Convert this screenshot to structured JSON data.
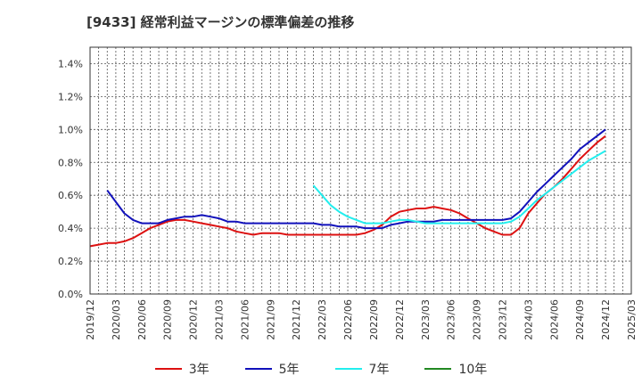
{
  "title": "[9433]  経常利益マージンの標準偏差の推移",
  "chart_data": {
    "type": "line",
    "title": "[9433]  経常利益マージンの標準偏差の推移",
    "xlabel": "",
    "ylabel": "",
    "ylim": [
      0,
      1.5
    ],
    "y_ticks": [
      "0.0%",
      "0.2%",
      "0.4%",
      "0.6%",
      "0.8%",
      "1.0%",
      "1.2%",
      "1.4%"
    ],
    "y_tick_values": [
      0,
      0.2,
      0.4,
      0.6,
      0.8,
      1.0,
      1.2,
      1.4
    ],
    "x_ticks": [
      "2019/12",
      "2020/03",
      "2020/06",
      "2020/09",
      "2020/12",
      "2021/03",
      "2021/06",
      "2021/09",
      "2021/12",
      "2022/03",
      "2022/06",
      "2022/09",
      "2022/12",
      "2023/03",
      "2023/06",
      "2023/09",
      "2023/12",
      "2024/03",
      "2024/06",
      "2024/09",
      "2024/12",
      "2025/03"
    ],
    "grid": true,
    "legend_position": "bottom",
    "series": [
      {
        "name": "3年",
        "color": "#dd1111",
        "points": [
          [
            "2019/12",
            0.29
          ],
          [
            "2020/01",
            0.3
          ],
          [
            "2020/02",
            0.31
          ],
          [
            "2020/03",
            0.31
          ],
          [
            "2020/04",
            0.32
          ],
          [
            "2020/05",
            0.34
          ],
          [
            "2020/06",
            0.37
          ],
          [
            "2020/07",
            0.4
          ],
          [
            "2020/08",
            0.42
          ],
          [
            "2020/09",
            0.44
          ],
          [
            "2020/10",
            0.45
          ],
          [
            "2020/11",
            0.45
          ],
          [
            "2020/12",
            0.44
          ],
          [
            "2021/01",
            0.43
          ],
          [
            "2021/02",
            0.42
          ],
          [
            "2021/03",
            0.41
          ],
          [
            "2021/04",
            0.4
          ],
          [
            "2021/05",
            0.38
          ],
          [
            "2021/06",
            0.37
          ],
          [
            "2021/07",
            0.36
          ],
          [
            "2021/08",
            0.37
          ],
          [
            "2021/09",
            0.37
          ],
          [
            "2021/10",
            0.37
          ],
          [
            "2021/11",
            0.36
          ],
          [
            "2021/12",
            0.36
          ],
          [
            "2022/01",
            0.36
          ],
          [
            "2022/02",
            0.36
          ],
          [
            "2022/03",
            0.36
          ],
          [
            "2022/04",
            0.36
          ],
          [
            "2022/05",
            0.36
          ],
          [
            "2022/06",
            0.36
          ],
          [
            "2022/07",
            0.36
          ],
          [
            "2022/08",
            0.37
          ],
          [
            "2022/09",
            0.39
          ],
          [
            "2022/10",
            0.42
          ],
          [
            "2022/11",
            0.47
          ],
          [
            "2022/12",
            0.5
          ],
          [
            "2023/01",
            0.51
          ],
          [
            "2023/02",
            0.52
          ],
          [
            "2023/03",
            0.52
          ],
          [
            "2023/04",
            0.53
          ],
          [
            "2023/05",
            0.52
          ],
          [
            "2023/06",
            0.51
          ],
          [
            "2023/07",
            0.49
          ],
          [
            "2023/08",
            0.46
          ],
          [
            "2023/09",
            0.43
          ],
          [
            "2023/10",
            0.4
          ],
          [
            "2023/11",
            0.38
          ],
          [
            "2023/12",
            0.36
          ],
          [
            "2024/01",
            0.36
          ],
          [
            "2024/02",
            0.4
          ],
          [
            "2024/03",
            0.49
          ],
          [
            "2024/04",
            0.55
          ],
          [
            "2024/05",
            0.61
          ],
          [
            "2024/06",
            0.65
          ],
          [
            "2024/07",
            0.7
          ],
          [
            "2024/08",
            0.76
          ],
          [
            "2024/09",
            0.82
          ],
          [
            "2024/10",
            0.87
          ],
          [
            "2024/11",
            0.92
          ],
          [
            "2024/12",
            0.96
          ]
        ]
      },
      {
        "name": "5年",
        "color": "#1111bb",
        "points": [
          [
            "2020/02",
            0.63
          ],
          [
            "2020/03",
            0.56
          ],
          [
            "2020/04",
            0.49
          ],
          [
            "2020/05",
            0.45
          ],
          [
            "2020/06",
            0.43
          ],
          [
            "2020/07",
            0.43
          ],
          [
            "2020/08",
            0.43
          ],
          [
            "2020/09",
            0.45
          ],
          [
            "2020/10",
            0.46
          ],
          [
            "2020/11",
            0.47
          ],
          [
            "2020/12",
            0.47
          ],
          [
            "2021/01",
            0.48
          ],
          [
            "2021/02",
            0.47
          ],
          [
            "2021/03",
            0.46
          ],
          [
            "2021/04",
            0.44
          ],
          [
            "2021/05",
            0.44
          ],
          [
            "2021/06",
            0.43
          ],
          [
            "2021/07",
            0.43
          ],
          [
            "2021/08",
            0.43
          ],
          [
            "2021/09",
            0.43
          ],
          [
            "2021/10",
            0.43
          ],
          [
            "2021/11",
            0.43
          ],
          [
            "2021/12",
            0.43
          ],
          [
            "2022/01",
            0.43
          ],
          [
            "2022/02",
            0.43
          ],
          [
            "2022/03",
            0.42
          ],
          [
            "2022/04",
            0.42
          ],
          [
            "2022/05",
            0.41
          ],
          [
            "2022/06",
            0.41
          ],
          [
            "2022/07",
            0.41
          ],
          [
            "2022/08",
            0.4
          ],
          [
            "2022/09",
            0.4
          ],
          [
            "2022/10",
            0.4
          ],
          [
            "2022/11",
            0.42
          ],
          [
            "2022/12",
            0.43
          ],
          [
            "2023/01",
            0.44
          ],
          [
            "2023/02",
            0.44
          ],
          [
            "2023/03",
            0.44
          ],
          [
            "2023/04",
            0.44
          ],
          [
            "2023/05",
            0.45
          ],
          [
            "2023/06",
            0.45
          ],
          [
            "2023/07",
            0.45
          ],
          [
            "2023/08",
            0.45
          ],
          [
            "2023/09",
            0.45
          ],
          [
            "2023/10",
            0.45
          ],
          [
            "2023/11",
            0.45
          ],
          [
            "2023/12",
            0.45
          ],
          [
            "2024/01",
            0.46
          ],
          [
            "2024/02",
            0.5
          ],
          [
            "2024/03",
            0.56
          ],
          [
            "2024/04",
            0.62
          ],
          [
            "2024/05",
            0.67
          ],
          [
            "2024/06",
            0.72
          ],
          [
            "2024/07",
            0.77
          ],
          [
            "2024/08",
            0.82
          ],
          [
            "2024/09",
            0.88
          ],
          [
            "2024/10",
            0.92
          ],
          [
            "2024/11",
            0.96
          ],
          [
            "2024/12",
            1.0
          ]
        ]
      },
      {
        "name": "7年",
        "color": "#22eeee",
        "points": [
          [
            "2022/02",
            0.66
          ],
          [
            "2022/03",
            0.6
          ],
          [
            "2022/04",
            0.54
          ],
          [
            "2022/05",
            0.5
          ],
          [
            "2022/06",
            0.47
          ],
          [
            "2022/07",
            0.45
          ],
          [
            "2022/08",
            0.43
          ],
          [
            "2022/09",
            0.43
          ],
          [
            "2022/10",
            0.43
          ],
          [
            "2022/11",
            0.44
          ],
          [
            "2022/12",
            0.45
          ],
          [
            "2023/01",
            0.45
          ],
          [
            "2023/02",
            0.44
          ],
          [
            "2023/03",
            0.43
          ],
          [
            "2023/04",
            0.43
          ],
          [
            "2023/05",
            0.43
          ],
          [
            "2023/06",
            0.43
          ],
          [
            "2023/07",
            0.43
          ],
          [
            "2023/08",
            0.43
          ],
          [
            "2023/09",
            0.43
          ],
          [
            "2023/10",
            0.43
          ],
          [
            "2023/11",
            0.43
          ],
          [
            "2023/12",
            0.43
          ],
          [
            "2024/01",
            0.44
          ],
          [
            "2024/02",
            0.47
          ],
          [
            "2024/03",
            0.52
          ],
          [
            "2024/04",
            0.57
          ],
          [
            "2024/05",
            0.61
          ],
          [
            "2024/06",
            0.65
          ],
          [
            "2024/07",
            0.69
          ],
          [
            "2024/08",
            0.73
          ],
          [
            "2024/09",
            0.77
          ],
          [
            "2024/10",
            0.81
          ],
          [
            "2024/11",
            0.84
          ],
          [
            "2024/12",
            0.87
          ]
        ]
      },
      {
        "name": "10年",
        "color": "#228822",
        "points": []
      }
    ]
  }
}
